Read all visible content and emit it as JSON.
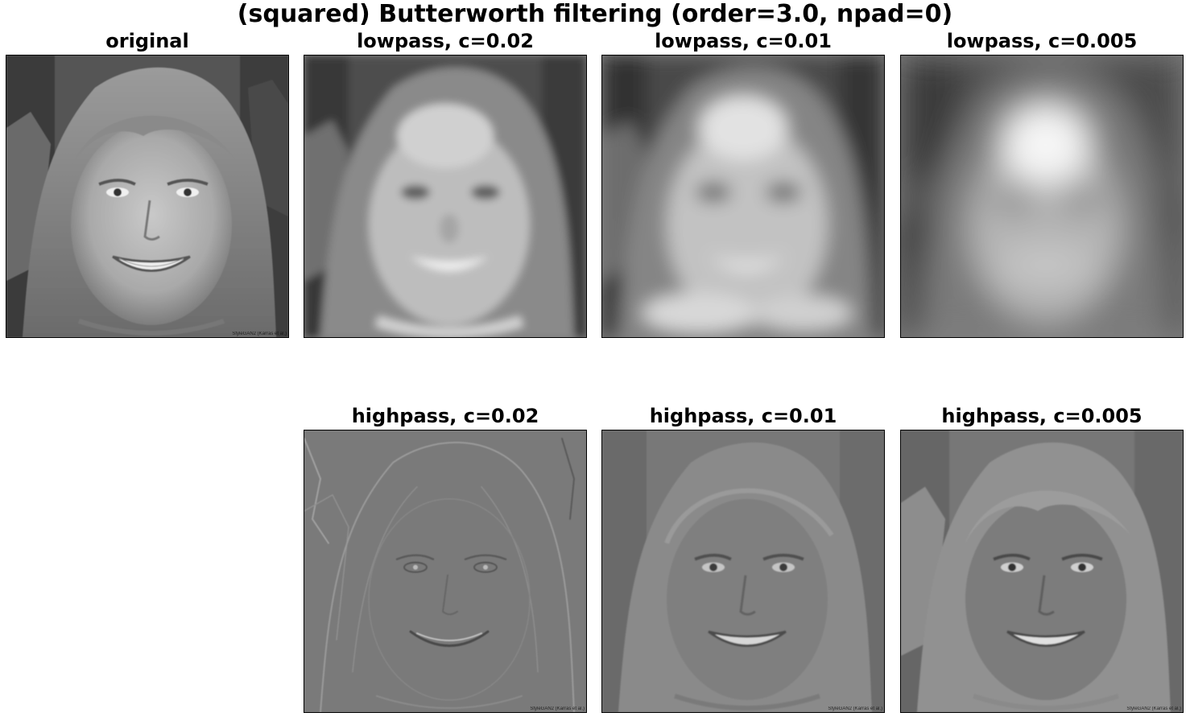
{
  "figure": {
    "title": "(squared) Butterworth filtering (order=3.0, npad=0)"
  },
  "panels": {
    "original": {
      "title": "original",
      "watermark": "StyleGAN2 (Karras et al.)"
    },
    "low_002": {
      "title": "lowpass, c=0.02"
    },
    "low_001": {
      "title": "lowpass, c=0.01"
    },
    "low_0005": {
      "title": "lowpass, c=0.005"
    },
    "high_002": {
      "title": "highpass, c=0.02",
      "watermark": "StyleGAN2 (Karras et al.)"
    },
    "high_001": {
      "title": "highpass, c=0.01",
      "watermark": "StyleGAN2 (Karras et al.)"
    },
    "high_0005": {
      "title": "highpass, c=0.005",
      "watermark": "StyleGAN2 (Karras et al.)"
    }
  },
  "colors": {
    "background": "#ffffff",
    "frame": "#000000",
    "highpass_gray": "#7f7f7f"
  }
}
